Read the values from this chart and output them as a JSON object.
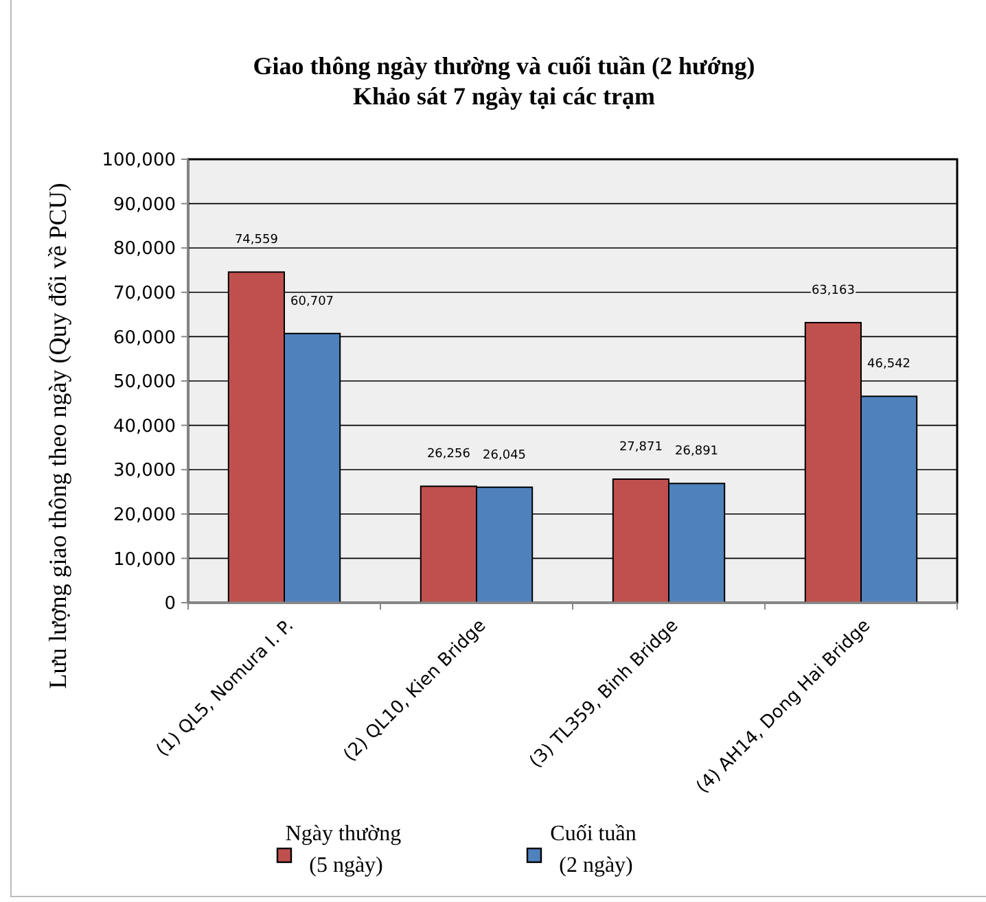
{
  "chart_data": {
    "type": "bar",
    "title": "Giao thông ngày thường và cuối tuần (2 hướng)\nKhảo sát 7 ngày tại các trạm",
    "ylabel": "Lưu lượng giao thông theo ngày (Quy đổi về PCU)",
    "categories": [
      "(1) QL5, Nomura I. P.",
      "(2) QL10, Kien Bridge",
      "(3) TL359, Binh Bridge",
      "(4) AH14, Dong Hai Bridge"
    ],
    "series": [
      {
        "name": "Ngày thường\n(5 ngày)",
        "color": "#c0504d",
        "values": [
          74559,
          26256,
          27871,
          63163
        ],
        "value_labels": [
          "74,559",
          "26,256",
          "27,871",
          "63,163"
        ]
      },
      {
        "name": "Cuối tuần\n(2 ngày)",
        "color": "#4f81bd",
        "values": [
          60707,
          26045,
          26891,
          46542
        ],
        "value_labels": [
          "60,707",
          "26,045",
          "26,891",
          "46,542"
        ]
      }
    ],
    "ylim": [
      0,
      100000
    ],
    "yticks": [
      {
        "value": 0,
        "label": "0"
      },
      {
        "value": 10000,
        "label": "10,000"
      },
      {
        "value": 20000,
        "label": "20,000"
      },
      {
        "value": 30000,
        "label": "30,000"
      },
      {
        "value": 40000,
        "label": "40,000"
      },
      {
        "value": 50000,
        "label": "50,000"
      },
      {
        "value": 60000,
        "label": "60,000"
      },
      {
        "value": 70000,
        "label": "70,000"
      },
      {
        "value": 80000,
        "label": "80,000"
      },
      {
        "value": 90000,
        "label": "90,000"
      },
      {
        "value": 100000,
        "label": "100,000"
      }
    ],
    "grid": "y",
    "legend": "bottom"
  }
}
